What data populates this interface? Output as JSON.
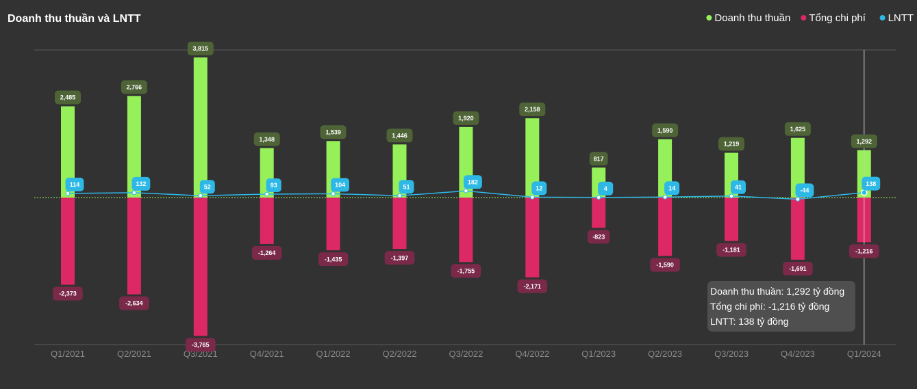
{
  "chart_data": {
    "type": "bar",
    "title": "Doanh thu thuần và LNTT",
    "categories": [
      "Q1/2021",
      "Q2/2021",
      "Q3/2021",
      "Q4/2021",
      "Q1/2022",
      "Q2/2022",
      "Q3/2022",
      "Q4/2022",
      "Q1/2023",
      "Q2/2023",
      "Q3/2023",
      "Q4/2023",
      "Q1/2024"
    ],
    "series": [
      {
        "name": "Doanh thu thuần",
        "kind": "bar",
        "color": "#96f05a",
        "label_bg": "#4e6437",
        "values": [
          2485,
          2766,
          3815,
          1348,
          1539,
          1446,
          1920,
          2158,
          817,
          1590,
          1219,
          1625,
          1292
        ],
        "labels": [
          "2,485",
          "2,766",
          "3,815",
          "1,348",
          "1,539",
          "1,446",
          "1,920",
          "2,158",
          "817",
          "1,590",
          "1,219",
          "1,625",
          "1,292"
        ]
      },
      {
        "name": "Tổng chi phí",
        "kind": "bar",
        "color": "#dc2864",
        "label_bg": "#7a2a48",
        "values": [
          -2373,
          -2634,
          -3765,
          -1264,
          -1435,
          -1397,
          -1755,
          -2171,
          -823,
          -1590,
          -1181,
          -1691,
          -1216
        ],
        "labels": [
          "-2,373",
          "-2,634",
          "-3,765",
          "-1,264",
          "-1,435",
          "-1,397",
          "-1,755",
          "-2,171",
          "-823",
          "-1,590",
          "-1,181",
          "-1,691",
          "-1,216"
        ]
      },
      {
        "name": "LNTT",
        "kind": "line",
        "color": "#2eb8e6",
        "label_bg": "#2eb8e6",
        "values": [
          114,
          132,
          52,
          93,
          104,
          51,
          182,
          12,
          4,
          14,
          41,
          -44,
          138
        ],
        "labels": [
          "114",
          "132",
          "52",
          "93",
          "104",
          "51",
          "182",
          "12",
          "4",
          "14",
          "41",
          "-44",
          "138"
        ]
      }
    ],
    "ylim": [
      -4000,
      4000
    ],
    "zero_line": true,
    "legend_position": "top-right",
    "grid": false
  },
  "tooltip": {
    "category": "Q1/2024",
    "lines": [
      "Doanh thu thuần: 1,292 tỷ đồng",
      "Tổng chi phí: -1,216 tỷ đồng",
      "LNTT: 138 tỷ đồng"
    ]
  }
}
